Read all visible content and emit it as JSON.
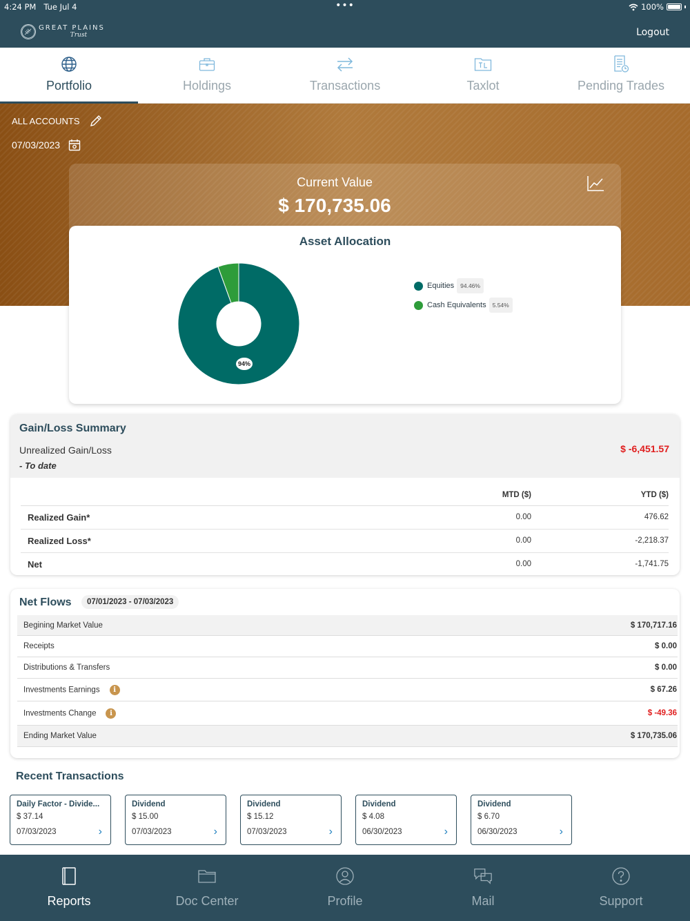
{
  "status_bar": {
    "time": "4:24 PM",
    "date": "Tue Jul 4",
    "battery": "100%"
  },
  "header": {
    "brand": "GREAT PLAINS",
    "brand_sub": "Trust",
    "logout_label": "Logout"
  },
  "tabs": [
    {
      "label": "Portfolio",
      "icon": "globe-icon",
      "active": true
    },
    {
      "label": "Holdings",
      "icon": "briefcase-icon",
      "active": false
    },
    {
      "label": "Transactions",
      "icon": "swap-arrows-icon",
      "active": false
    },
    {
      "label": "Taxlot",
      "icon": "taxlot-folder-icon",
      "active": false
    },
    {
      "label": "Pending Trades",
      "icon": "document-clock-icon",
      "active": false
    }
  ],
  "banner": {
    "account_label": "ALL ACCOUNTS",
    "date": "07/03/2023"
  },
  "current_value": {
    "label": "Current Value",
    "value": "$ 170,735.06"
  },
  "asset_allocation": {
    "title": "Asset Allocation",
    "slice_label": "94%",
    "colors": {
      "equities": "#006b66",
      "cash": "#2e9c3a"
    }
  },
  "chart_data": {
    "type": "pie",
    "title": "Asset Allocation",
    "categories": [
      "Equities",
      "Cash Equivalents"
    ],
    "values": [
      94.46,
      5.54
    ],
    "value_labels": [
      "94.46%",
      "5.54%"
    ],
    "donut": true,
    "legend_position": "right"
  },
  "gain_loss": {
    "title": "Gain/Loss Summary",
    "unrealized_label": "Unrealized Gain/Loss",
    "to_date_label": "- To date",
    "unrealized_value": "$ -6,451.57",
    "columns": [
      "",
      "MTD ($)",
      "YTD ($)"
    ],
    "rows": [
      {
        "label": "Realized Gain*",
        "mtd": "0.00",
        "ytd": "476.62"
      },
      {
        "label": "Realized Loss*",
        "mtd": "0.00",
        "ytd": "-2,218.37"
      },
      {
        "label": "Net",
        "mtd": "0.00",
        "ytd": "-1,741.75"
      }
    ]
  },
  "net_flows": {
    "title": "Net Flows",
    "range": "07/01/2023 - 07/03/2023",
    "rows": [
      {
        "label": "Begining Market Value",
        "value": "$ 170,717.16",
        "shade": true,
        "negative": false,
        "info": false
      },
      {
        "label": "Receipts",
        "value": "$ 0.00",
        "shade": false,
        "negative": false,
        "info": false
      },
      {
        "label": "Distributions & Transfers",
        "value": "$ 0.00",
        "shade": false,
        "negative": false,
        "info": false
      },
      {
        "label": "Investments Earnings",
        "value": "$ 67.26",
        "shade": false,
        "negative": false,
        "info": true
      },
      {
        "label": "Investments Change",
        "value": "$ -49.36",
        "shade": false,
        "negative": true,
        "info": true
      },
      {
        "label": "Ending Market Value",
        "value": "$ 170,735.06",
        "shade": true,
        "negative": false,
        "info": false
      }
    ]
  },
  "recent_transactions": {
    "title": "Recent Transactions",
    "items": [
      {
        "type": "Daily Factor - Divide...",
        "amount": "$ 37.14",
        "date": "07/03/2023"
      },
      {
        "type": "Dividend",
        "amount": "$ 15.00",
        "date": "07/03/2023"
      },
      {
        "type": "Dividend",
        "amount": "$ 15.12",
        "date": "07/03/2023"
      },
      {
        "type": "Dividend",
        "amount": "$ 4.08",
        "date": "06/30/2023"
      },
      {
        "type": "Dividend",
        "amount": "$ 6.70",
        "date": "06/30/2023"
      }
    ]
  },
  "bottom_nav": [
    {
      "label": "Reports",
      "icon": "book-icon",
      "active": true
    },
    {
      "label": "Doc Center",
      "icon": "folder-icon",
      "active": false
    },
    {
      "label": "Profile",
      "icon": "user-circle-icon",
      "active": false
    },
    {
      "label": "Mail",
      "icon": "chat-bubbles-icon",
      "active": false
    },
    {
      "label": "Support",
      "icon": "help-circle-icon",
      "active": false
    }
  ]
}
